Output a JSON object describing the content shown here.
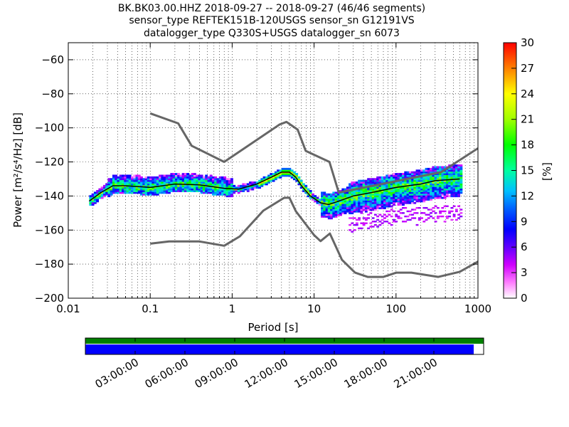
{
  "chart_data": {
    "type": "heatmap",
    "title_lines": [
      "BK.BK03.00.HHZ   2018-09-27 -- 2018-09-27  (46/46 segments)",
      "sensor_type REFTEK151B-120USGS sensor_sn G12191VS",
      "datalogger_type Q330S+USGS datalogger_sn 6073"
    ],
    "xlabel": "Period [s]",
    "ylabel": "Power [m²/s⁴/Hz] [dB]",
    "xscale": "log",
    "xlim": [
      0.01,
      1000
    ],
    "ylim": [
      -200,
      -50
    ],
    "xtick_values": [
      0.01,
      0.1,
      1,
      10,
      100,
      1000
    ],
    "xtick_labels": [
      "0.01",
      "0.1",
      "1",
      "10",
      "100",
      "1000"
    ],
    "ytick_values": [
      -60,
      -80,
      -100,
      -120,
      -140,
      -160,
      -180,
      -200
    ],
    "ytick_labels": [
      "−60",
      "−80",
      "−100",
      "−120",
      "−140",
      "−160",
      "−180",
      "−200"
    ],
    "colorbar": {
      "label": "[%]",
      "range": [
        0,
        30
      ],
      "tick_values": [
        0,
        3,
        6,
        9,
        12,
        15,
        18,
        21,
        24,
        27,
        30
      ],
      "tick_labels": [
        "0",
        "3",
        "6",
        "9",
        "12",
        "15",
        "18",
        "21",
        "24",
        "27",
        "30"
      ]
    },
    "colors": {
      "model_curves": "#666666",
      "mode_line": "#000000",
      "grid": "#000000"
    },
    "series": [
      {
        "role": "high-noise-model",
        "x": [
          0.1,
          0.22,
          0.32,
          0.8,
          3.8,
          4.6,
          6.3,
          7.9,
          15.4,
          20,
          354.8,
          1000
        ],
        "y": [
          -91.5,
          -97.4,
          -110.5,
          -120,
          -98,
          -96.5,
          -101,
          -113.5,
          -120,
          -138,
          -126,
          -112
        ]
      },
      {
        "role": "low-noise-model",
        "x": [
          0.1,
          0.17,
          0.4,
          0.8,
          1.24,
          2.4,
          4.3,
          5,
          6,
          10,
          12,
          15.6,
          21.9,
          31.6,
          45,
          70,
          101,
          154,
          328,
          600,
          1000
        ],
        "y": [
          -168,
          -166.7,
          -166.7,
          -169.2,
          -163.7,
          -148.6,
          -141.1,
          -141,
          -149,
          -163,
          -166.5,
          -162,
          -177.5,
          -185,
          -187.5,
          -187.5,
          -185,
          -185,
          -187.5,
          -184.5,
          -178.5
        ]
      },
      {
        "role": "mode",
        "x": [
          0.018,
          0.025,
          0.035,
          0.05,
          0.1,
          0.2,
          0.4,
          0.8,
          1.2,
          2,
          3,
          4,
          5,
          6,
          7,
          9,
          12,
          15,
          20,
          30,
          50,
          100,
          200,
          300,
          600
        ],
        "y": [
          -143,
          -138,
          -134,
          -134,
          -135,
          -133,
          -133.5,
          -135.5,
          -136,
          -133,
          -129,
          -126,
          -126,
          -129,
          -134,
          -140,
          -144,
          -145,
          -143,
          -140,
          -138,
          -135,
          -133,
          -131,
          -130
        ]
      }
    ],
    "time_coverage": {
      "tick_labels": [
        "03:00:00",
        "06:00:00",
        "09:00:00",
        "12:00:00",
        "15:00:00",
        "18:00:00",
        "21:00:00"
      ],
      "data_fraction": 0.975,
      "colors": {
        "data": "#008000",
        "segments": "#0000ff"
      }
    }
  }
}
